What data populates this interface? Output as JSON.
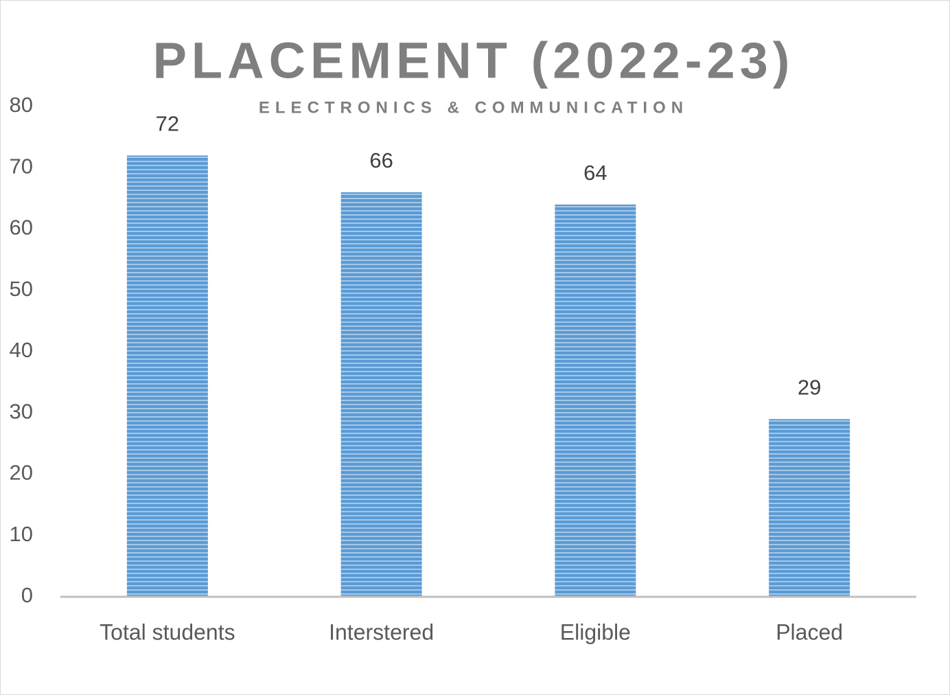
{
  "chart_data": {
    "type": "bar",
    "title": "PLACEMENT (2022-23)",
    "subtitle": "ELECTRONICS & COMMUNICATION",
    "categories": [
      "Total students",
      "Interstered",
      "Eligible",
      "Placed"
    ],
    "values": [
      72,
      66,
      64,
      29
    ],
    "color": "#5b9bd5",
    "ylim": [
      0,
      80
    ],
    "yticks": [
      0,
      10,
      20,
      30,
      40,
      50,
      60,
      70,
      80
    ],
    "grid": false
  }
}
